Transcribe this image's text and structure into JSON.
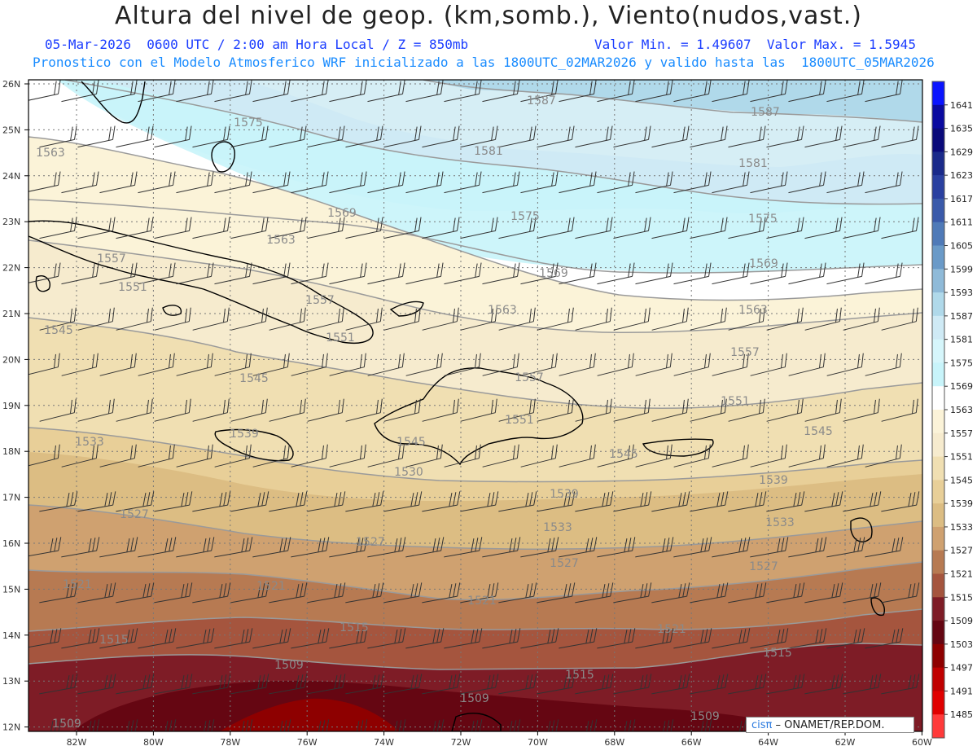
{
  "header": {
    "title": "Altura del nivel de geop. (km,somb.), Viento(nudos,vast.)",
    "line1_left": "05-Mar-2026  0600 UTC / 2:00 am Hora Local / Z = 850mb",
    "line1_right": "Valor Min. = 1.49607  Valor Max. = 1.5945",
    "line2": "Pronostico con el Modelo Atmosferico WRF inicializado a las 1800UTC_02MAR2026 y valido hasta las  1800UTC_05MAR2026"
  },
  "map": {
    "lat_labels": [
      "26N",
      "25N",
      "24N",
      "23N",
      "22N",
      "21N",
      "20N",
      "19N",
      "18N",
      "17N",
      "16N",
      "15N",
      "14N",
      "13N",
      "12N"
    ],
    "lon_labels": [
      "82W",
      "80W",
      "78W",
      "76W",
      "74W",
      "72W",
      "70W",
      "68W",
      "66W",
      "64W",
      "62W",
      "60W"
    ],
    "contour_labels": [
      {
        "text": "1587"
      },
      {
        "text": "1587"
      },
      {
        "text": "1575"
      },
      {
        "text": "1581"
      },
      {
        "text": "1581"
      },
      {
        "text": "1563"
      },
      {
        "text": "1569"
      },
      {
        "text": "1575"
      },
      {
        "text": "1575"
      },
      {
        "text": "1563"
      },
      {
        "text": "1569"
      },
      {
        "text": "1569"
      },
      {
        "text": "1557"
      },
      {
        "text": "1551"
      },
      {
        "text": "1557"
      },
      {
        "text": "1563"
      },
      {
        "text": "1563"
      },
      {
        "text": "1545"
      },
      {
        "text": "1551"
      },
      {
        "text": "1557"
      },
      {
        "text": "1545"
      },
      {
        "text": "1557"
      },
      {
        "text": "1551"
      },
      {
        "text": "1539"
      },
      {
        "text": "1551"
      },
      {
        "text": "1545"
      },
      {
        "text": "1545"
      },
      {
        "text": "1533"
      },
      {
        "text": "1530"
      },
      {
        "text": "1545"
      },
      {
        "text": "1539"
      },
      {
        "text": "1539"
      },
      {
        "text": "1527"
      },
      {
        "text": "1533"
      },
      {
        "text": "1533"
      },
      {
        "text": "1527"
      },
      {
        "text": "1527"
      },
      {
        "text": "1527"
      },
      {
        "text": "1521"
      },
      {
        "text": "1521"
      },
      {
        "text": "1521"
      },
      {
        "text": "1515"
      },
      {
        "text": "1515"
      },
      {
        "text": "1521"
      },
      {
        "text": "1509"
      },
      {
        "text": "1515"
      },
      {
        "text": "1515"
      },
      {
        "text": "1509"
      },
      {
        "text": "1509"
      },
      {
        "text": "1509"
      }
    ]
  },
  "colorbar": {
    "labels": [
      "1641",
      "1635",
      "1629",
      "1623",
      "1617",
      "1611",
      "1605",
      "1599",
      "1593",
      "1587",
      "1581",
      "1575",
      "1569",
      "1563",
      "1557",
      "1551",
      "1545",
      "1539",
      "1533",
      "1527",
      "1521",
      "1515",
      "1509",
      "1503",
      "1497",
      "1491",
      "1485"
    ],
    "colors": [
      "#0a14ff",
      "#0a0aa0",
      "#0a0a7a",
      "#1a2a8a",
      "#2a40a0",
      "#3a5aaa",
      "#4f7ab8",
      "#6a9ac8",
      "#8fbad8",
      "#b0d9ea",
      "#cfeaf5",
      "#d6f6fb",
      "#c8f4fa",
      "#ffffff",
      "#fbf3d8",
      "#f6ebce",
      "#f0dfb2",
      "#e8cf98",
      "#dcbd83",
      "#cfa170",
      "#b77a52",
      "#a5553e",
      "#7e1c26",
      "#650612",
      "#8e0000",
      "#c00000",
      "#e00000",
      "#ff3a3a"
    ]
  },
  "credit": {
    "logo": "cisπ",
    "text": "– ONAMET/REP.DOM."
  }
}
